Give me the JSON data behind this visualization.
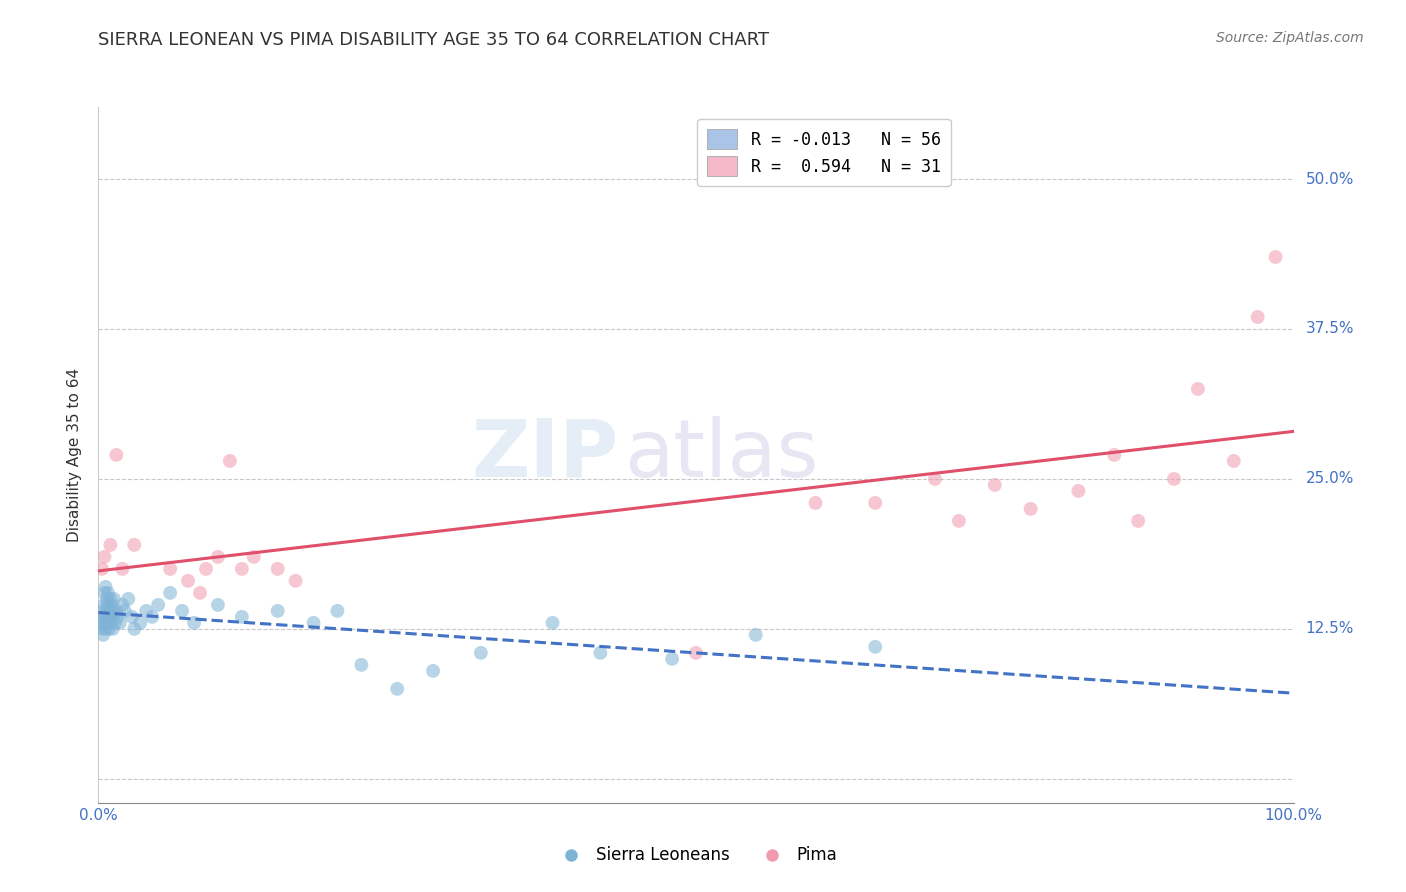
{
  "title": "SIERRA LEONEAN VS PIMA DISABILITY AGE 35 TO 64 CORRELATION CHART",
  "source_text": "Source: ZipAtlas.com",
  "ylabel": "Disability Age 35 to 64",
  "xlim": [
    0.0,
    1.0
  ],
  "ylim": [
    -0.02,
    0.56
  ],
  "yticks": [
    0.0,
    0.125,
    0.25,
    0.375,
    0.5
  ],
  "ytick_labels": [
    "",
    "12.5%",
    "25.0%",
    "37.5%",
    "50.0%"
  ],
  "xtick_labels": [
    "0.0%",
    "100.0%"
  ],
  "legend_entries": [
    {
      "label": "R = -0.013   N = 56",
      "color": "#aac4e8"
    },
    {
      "label": "R =  0.594   N = 31",
      "color": "#f4b8c8"
    }
  ],
  "background_color": "#ffffff",
  "grid_color": "#c8c8c8",
  "watermark_text": "ZIP",
  "watermark_text2": "atlas",
  "sierra_x": [
    0.002,
    0.003,
    0.003,
    0.004,
    0.004,
    0.005,
    0.005,
    0.005,
    0.006,
    0.006,
    0.006,
    0.007,
    0.007,
    0.007,
    0.008,
    0.008,
    0.009,
    0.009,
    0.01,
    0.01,
    0.01,
    0.011,
    0.011,
    0.012,
    0.012,
    0.013,
    0.014,
    0.015,
    0.016,
    0.018,
    0.02,
    0.022,
    0.025,
    0.028,
    0.03,
    0.035,
    0.04,
    0.045,
    0.05,
    0.06,
    0.07,
    0.08,
    0.1,
    0.12,
    0.15,
    0.18,
    0.2,
    0.22,
    0.25,
    0.28,
    0.32,
    0.38,
    0.42,
    0.48,
    0.55,
    0.65
  ],
  "sierra_y": [
    0.13,
    0.125,
    0.135,
    0.12,
    0.14,
    0.155,
    0.13,
    0.145,
    0.16,
    0.135,
    0.125,
    0.15,
    0.14,
    0.13,
    0.145,
    0.155,
    0.135,
    0.125,
    0.14,
    0.15,
    0.13,
    0.145,
    0.135,
    0.125,
    0.14,
    0.15,
    0.13,
    0.14,
    0.135,
    0.13,
    0.145,
    0.14,
    0.15,
    0.135,
    0.125,
    0.13,
    0.14,
    0.135,
    0.145,
    0.155,
    0.14,
    0.13,
    0.145,
    0.135,
    0.14,
    0.13,
    0.14,
    0.095,
    0.075,
    0.09,
    0.105,
    0.13,
    0.105,
    0.1,
    0.12,
    0.11
  ],
  "pima_x": [
    0.003,
    0.005,
    0.01,
    0.015,
    0.02,
    0.03,
    0.06,
    0.075,
    0.085,
    0.09,
    0.1,
    0.11,
    0.12,
    0.13,
    0.15,
    0.165,
    0.5,
    0.6,
    0.65,
    0.7,
    0.72,
    0.75,
    0.78,
    0.82,
    0.85,
    0.87,
    0.9,
    0.92,
    0.95,
    0.97,
    0.985
  ],
  "pima_y": [
    0.175,
    0.185,
    0.195,
    0.27,
    0.175,
    0.195,
    0.175,
    0.165,
    0.155,
    0.175,
    0.185,
    0.265,
    0.175,
    0.185,
    0.175,
    0.165,
    0.105,
    0.23,
    0.23,
    0.25,
    0.215,
    0.245,
    0.225,
    0.24,
    0.27,
    0.215,
    0.25,
    0.325,
    0.265,
    0.385,
    0.435
  ],
  "sierra_color": "#7fb3d6",
  "pima_color": "#f09ab0",
  "sierra_line_color": "#4472c4",
  "pima_line_color": "#e0506a",
  "dot_size": 100,
  "dot_alpha": 0.55,
  "line_width": 2.2
}
